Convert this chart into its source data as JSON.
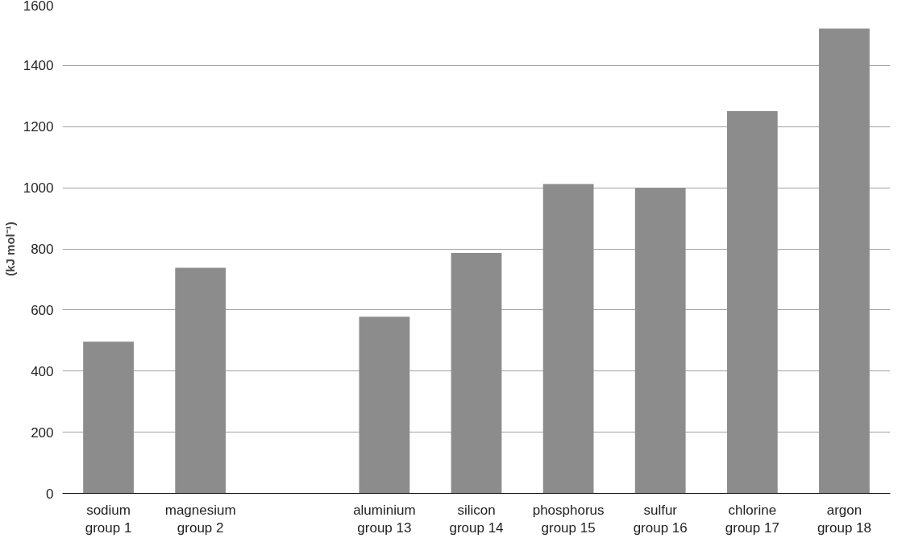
{
  "chart_data": {
    "type": "bar",
    "ylabel": "(kJ mol⁻¹)",
    "categories": [
      "sodium\ngroup 1",
      "magnesium\ngroup 2",
      null,
      "aluminium\ngroup 13",
      "silicon\ngroup 14",
      "phosphorus\ngroup 15",
      "sulfur\ngroup 16",
      "chlorine\ngroup 17",
      "argon\ngroup 18"
    ],
    "values": [
      496,
      738,
      null,
      578,
      787,
      1012,
      1000,
      1251,
      1521
    ],
    "color": "#8c8c8c",
    "ylim": [
      0,
      1600
    ],
    "yticks": [
      0,
      200,
      400,
      600,
      800,
      1000,
      1200,
      1400,
      1600
    ],
    "grid": "y"
  }
}
